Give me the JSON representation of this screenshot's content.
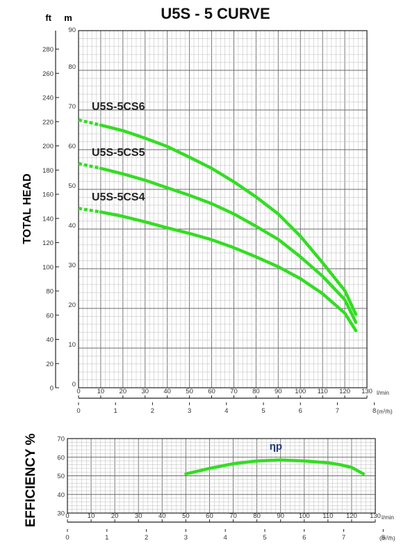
{
  "title": "U5S - 5 CURVE",
  "chart_data": [
    {
      "type": "line",
      "title": "U5S - 5 CURVE",
      "ylabel": "TOTAL HEAD",
      "y_unit_left": "ft",
      "y_unit_right": "m",
      "x_unit_primary": "l/min",
      "x_unit_secondary": "(m³/h)",
      "xlim": [
        0,
        130
      ],
      "ylim_m": [
        0,
        90
      ],
      "ylim_ft": [
        0,
        295.3
      ],
      "x_ticks": [
        "0",
        "10",
        "20",
        "30",
        "40",
        "50",
        "60",
        "70",
        "80",
        "90",
        "100",
        "110",
        "120",
        "130"
      ],
      "x2_ticks": [
        "0",
        "1",
        "2",
        "3",
        "4",
        "5",
        "6",
        "7",
        "8"
      ],
      "y_ticks_m": [
        "0",
        "10",
        "20",
        "30",
        "40",
        "50",
        "60",
        "70",
        "80",
        "90"
      ],
      "y_ticks_ft": [
        "0",
        "20",
        "40",
        "60",
        "80",
        "100",
        "120",
        "140",
        "160",
        "180",
        "200",
        "220",
        "240",
        "260",
        "280"
      ],
      "grid": true,
      "series": [
        {
          "name": "U5S-5CS6",
          "color": "#33dd22",
          "x": [
            0,
            10,
            20,
            30,
            40,
            50,
            60,
            70,
            80,
            90,
            100,
            110,
            120,
            125
          ],
          "y": [
            67.5,
            66.2,
            64.8,
            62.9,
            60.8,
            58.1,
            55.3,
            51.9,
            48.1,
            43.8,
            38.2,
            31.5,
            24.5,
            18.5
          ]
        },
        {
          "name": "U5S-5CS5",
          "color": "#33dd22",
          "x": [
            0,
            10,
            20,
            30,
            40,
            50,
            60,
            70,
            80,
            90,
            100,
            110,
            120,
            125
          ],
          "y": [
            56.5,
            55.3,
            53.9,
            52.3,
            50.4,
            48.5,
            46.4,
            43.8,
            40.7,
            37.4,
            33.0,
            28.1,
            22.2,
            16.5
          ]
        },
        {
          "name": "U5S-5CS4",
          "color": "#33dd22",
          "x": [
            0,
            10,
            20,
            30,
            40,
            50,
            60,
            70,
            80,
            90,
            100,
            110,
            120,
            125
          ],
          "y": [
            45.2,
            44.3,
            43.2,
            41.8,
            40.3,
            38.9,
            37.3,
            35.3,
            33.0,
            30.5,
            27.5,
            23.7,
            18.8,
            14.4
          ]
        }
      ]
    },
    {
      "type": "line",
      "ylabel": "EFFICIENCY %",
      "x_unit_primary": "l/min",
      "x_unit_secondary": "(m³/h)",
      "xlim": [
        0,
        130
      ],
      "ylim": [
        30,
        70
      ],
      "x_ticks": [
        "0",
        "10",
        "20",
        "30",
        "40",
        "50",
        "60",
        "70",
        "80",
        "90",
        "100",
        "110",
        "120",
        "130"
      ],
      "x2_ticks": [
        "0",
        "1",
        "2",
        "3",
        "4",
        "5",
        "6",
        "7",
        "8"
      ],
      "y_ticks": [
        "30",
        "40",
        "50",
        "60",
        "70"
      ],
      "grid": true,
      "series": [
        {
          "name": "ηp",
          "color": "#33dd22",
          "x": [
            50,
            60,
            70,
            80,
            90,
            100,
            110,
            115,
            120,
            125
          ],
          "y": [
            51,
            54,
            56.5,
            58,
            58.5,
            58,
            57,
            56,
            54.5,
            51
          ]
        }
      ]
    }
  ]
}
